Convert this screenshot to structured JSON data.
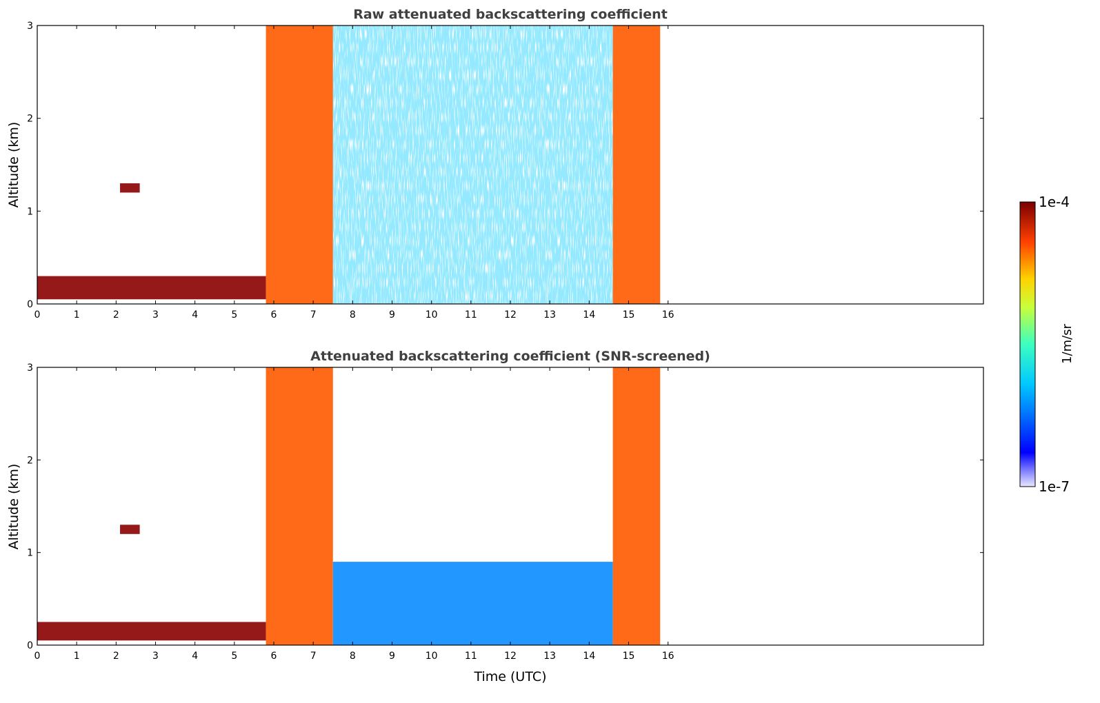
{
  "chart_data": [
    {
      "type": "heatmap",
      "title": "Raw attenuated backscattering coefficient",
      "xlabel": "",
      "ylabel": "Altitude (km)",
      "xlim": [
        0,
        24
      ],
      "ylim": [
        0,
        3
      ],
      "x_ticks": [
        "0",
        "1",
        "2",
        "3",
        "4",
        "5",
        "6",
        "7",
        "8",
        "9",
        "10",
        "11",
        "12",
        "13",
        "14",
        "15",
        "16"
      ],
      "y_ticks": [
        "0",
        "1",
        "2",
        "3"
      ],
      "data_extent_hours": [
        0,
        15.8
      ],
      "features": [
        {
          "name": "nocturnal boundary layer",
          "t": [
            0,
            5.8
          ],
          "alt": [
            0.05,
            0.3
          ],
          "level": "very high"
        },
        {
          "name": "morning convective clouds",
          "t": [
            5.8,
            7.5
          ],
          "alt": [
            0,
            3
          ],
          "level": "high"
        },
        {
          "name": "daytime noisy background",
          "t": [
            7.5,
            14.6
          ],
          "alt": [
            0,
            3
          ],
          "level": "low-medium"
        },
        {
          "name": "elevated layer",
          "t": [
            2.1,
            2.6
          ],
          "alt": [
            1.2,
            1.3
          ],
          "level": "very high"
        },
        {
          "name": "evening clouds",
          "t": [
            14.6,
            15.8
          ],
          "alt": [
            0,
            3
          ],
          "level": "high"
        }
      ]
    },
    {
      "type": "heatmap",
      "title": "Attenuated backscattering coefficient (SNR-screened)",
      "xlabel": "Time (UTC)",
      "ylabel": "Altitude (km)",
      "xlim": [
        0,
        24
      ],
      "ylim": [
        0,
        3
      ],
      "x_ticks": [
        "0",
        "1",
        "2",
        "3",
        "4",
        "5",
        "6",
        "7",
        "8",
        "9",
        "10",
        "11",
        "12",
        "13",
        "14",
        "15",
        "16"
      ],
      "y_ticks": [
        "0",
        "1",
        "2",
        "3"
      ],
      "data_extent_hours": [
        0,
        15.8
      ],
      "features": [
        {
          "name": "nocturnal boundary layer",
          "t": [
            0,
            5.8
          ],
          "alt": [
            0.05,
            0.25
          ],
          "level": "very high"
        },
        {
          "name": "morning convective clouds",
          "t": [
            5.8,
            7.5
          ],
          "alt": [
            0,
            3
          ],
          "level": "high"
        },
        {
          "name": "daytime boundary layer",
          "t": [
            7.5,
            14.6
          ],
          "alt": [
            0,
            0.9
          ],
          "level": "low"
        },
        {
          "name": "elevated layer",
          "t": [
            2.1,
            2.6
          ],
          "alt": [
            1.2,
            1.3
          ],
          "level": "very high"
        },
        {
          "name": "evening clouds",
          "t": [
            14.6,
            15.8
          ],
          "alt": [
            0,
            3
          ],
          "level": "high"
        }
      ]
    }
  ],
  "colorbar": {
    "max_label": "1e-4",
    "min_label": "1e-7",
    "unit": "1/m/sr",
    "colormap": "jet",
    "scale": "log"
  }
}
